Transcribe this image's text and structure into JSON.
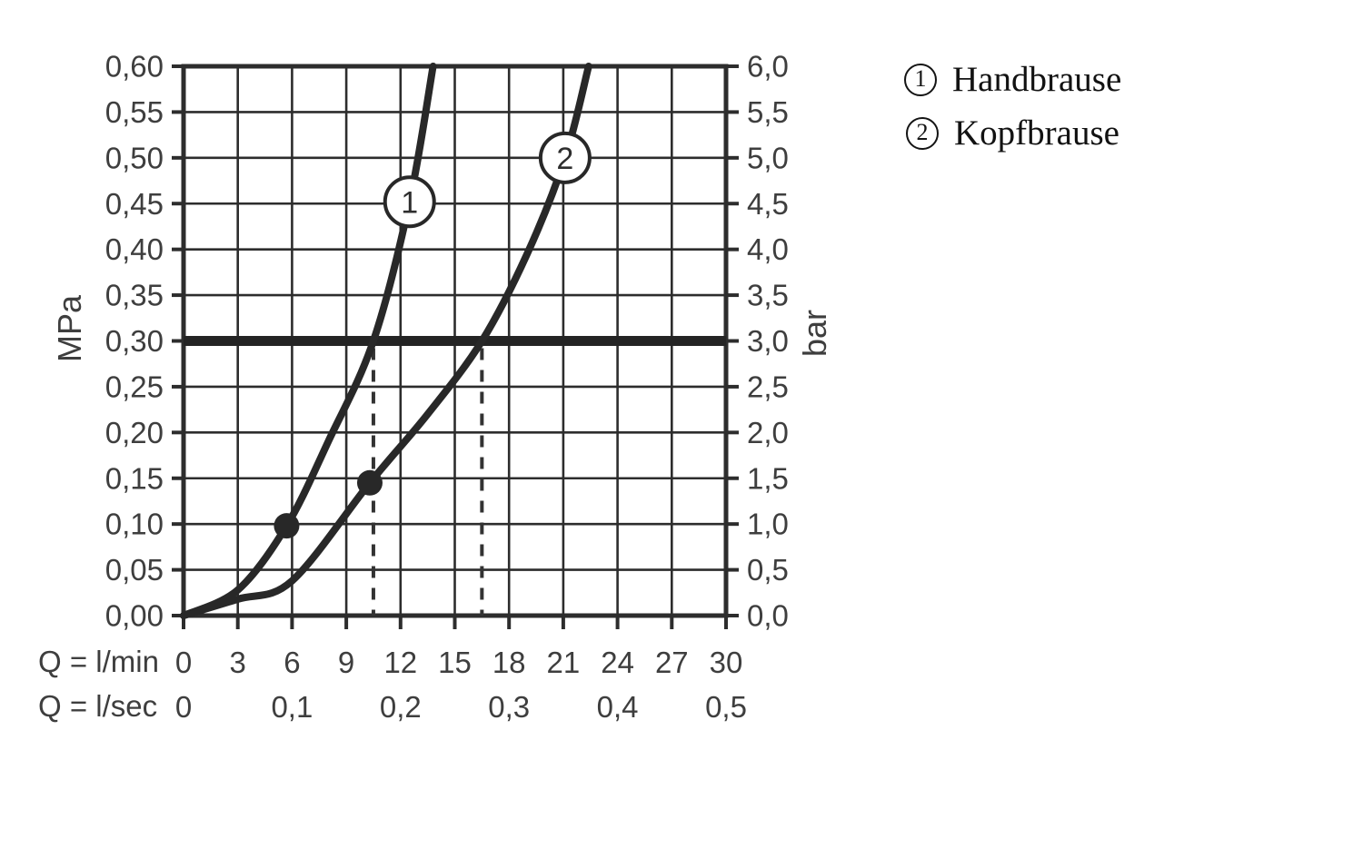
{
  "chart_data": {
    "type": "line",
    "title": "",
    "x_axis": {
      "row1_label": "Q = l/min",
      "row2_label": "Q = l/sec",
      "ticks_lmin": [
        "0",
        "3",
        "6",
        "9",
        "12",
        "15",
        "18",
        "21",
        "24",
        "27",
        "30"
      ],
      "ticks_lsec": [
        {
          "label": "0",
          "lmin": 0
        },
        {
          "label": "0,1",
          "lmin": 6
        },
        {
          "label": "0,2",
          "lmin": 12
        },
        {
          "label": "0,3",
          "lmin": 18
        },
        {
          "label": "0,4",
          "lmin": 24
        },
        {
          "label": "0,5",
          "lmin": 30
        }
      ],
      "range_lmin": [
        0,
        30
      ]
    },
    "y_axis_left": {
      "unit": "MPa",
      "ticks": [
        "0,60",
        "0,55",
        "0,50",
        "0,45",
        "0,40",
        "0,35",
        "0,30",
        "0,25",
        "0,20",
        "0,15",
        "0,10",
        "0,05",
        "0,00"
      ],
      "range_mpa": [
        0,
        0.6
      ]
    },
    "y_axis_right": {
      "unit": "bar",
      "ticks": [
        "6,0",
        "5,5",
        "5,0",
        "4,5",
        "4,0",
        "3,5",
        "3,0",
        "2,5",
        "2,0",
        "1,5",
        "1,0",
        "0,5",
        "0,0"
      ],
      "range_bar": [
        0,
        6
      ]
    },
    "grid": {
      "x_step_lmin": 3,
      "y_step_mpa": 0.05
    },
    "reference_line": {
      "mpa": 0.3,
      "bar": 3.0
    },
    "dashed_guides_lmin": [
      10.5,
      16.5
    ],
    "series": [
      {
        "id": "1",
        "name": "Handbrause",
        "points_lmin_mpa": [
          [
            0,
            0
          ],
          [
            3,
            0.028
          ],
          [
            5.7,
            0.098
          ],
          [
            8,
            0.19
          ],
          [
            10.5,
            0.3
          ],
          [
            12.5,
            0.452
          ],
          [
            13.8,
            0.6
          ]
        ],
        "marker_lmin_mpa": [
          5.7,
          0.098
        ],
        "badge_lmin_mpa": [
          12.5,
          0.452
        ]
      },
      {
        "id": "2",
        "name": "Kopfbrause",
        "points_lmin_mpa": [
          [
            0,
            0
          ],
          [
            3,
            0.018
          ],
          [
            6,
            0.038
          ],
          [
            10.3,
            0.145
          ],
          [
            13.5,
            0.22
          ],
          [
            16.5,
            0.3
          ],
          [
            19,
            0.395
          ],
          [
            21.1,
            0.5
          ],
          [
            22.4,
            0.6
          ]
        ],
        "marker_lmin_mpa": [
          10.3,
          0.145
        ],
        "badge_lmin_mpa": [
          21.1,
          0.5
        ]
      }
    ],
    "legend": [
      {
        "symbol": "1",
        "label": "Handbrause"
      },
      {
        "symbol": "2",
        "label": "Kopfbrause"
      }
    ]
  },
  "colors": {
    "background": "#ffffff",
    "grid": "#2d2d2d",
    "border": "#2d2d2d",
    "curve": "#282828",
    "reference": "#242424",
    "dashed": "#333333",
    "tick_text": "#3e3e3e",
    "legend_text": "#121212"
  }
}
